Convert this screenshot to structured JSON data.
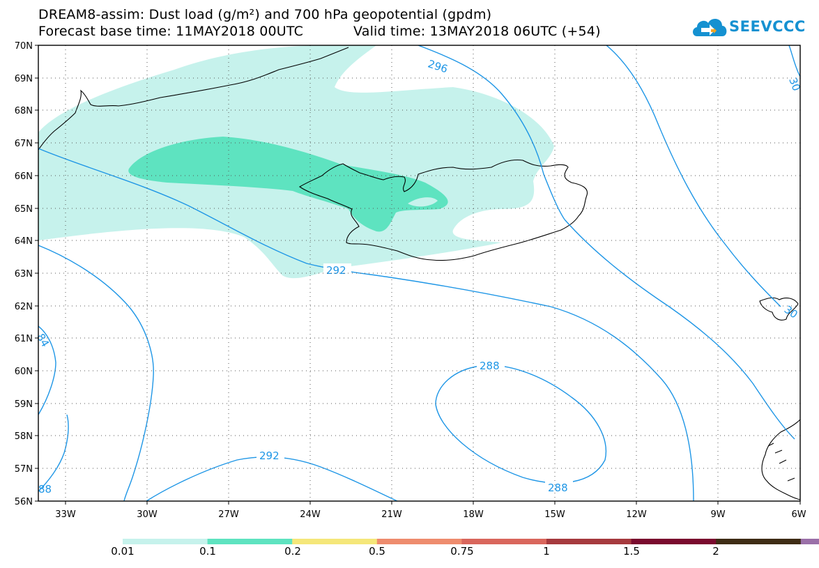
{
  "title_line1": "DREAM8-assim: Dust load (g/m²) and 700 hPa geopotential (gpdm)",
  "forecast_base": "Forecast base time: 11MAY2018 00UTC",
  "valid_time": "Valid time: 13MAY2018 06UTC (+54)",
  "logo": {
    "text": "SEEVCCC",
    "icon": "cloud-icon",
    "color": "#1591d1"
  },
  "map": {
    "lon_range": [
      -34,
      -6
    ],
    "lat_range": [
      56,
      70
    ],
    "lat_labels": [
      "70N",
      "69N",
      "68N",
      "67N",
      "66N",
      "65N",
      "64N",
      "63N",
      "62N",
      "61N",
      "60N",
      "59N",
      "58N",
      "57N",
      "56N"
    ],
    "lon_labels": [
      "33W",
      "30W",
      "27W",
      "24W",
      "21W",
      "18W",
      "15W",
      "12W",
      "9W",
      "6W"
    ],
    "contour_color": "#1e96e6",
    "contour_labels": [
      "296",
      "292",
      "292",
      "288",
      "288",
      "84",
      "88",
      "30",
      "30"
    ]
  },
  "colorbar": {
    "labels": [
      "0.01",
      "0.1",
      "0.2",
      "0.5",
      "0.75",
      "1",
      "1.5",
      "2"
    ],
    "colors": [
      "#c6f2ec",
      "#5ee3c0",
      "#f5e77a",
      "#ee8c6e",
      "#d9665c",
      "#a63a3e",
      "#7a0a2e",
      "#3e2c15",
      "#9a70a8"
    ]
  }
}
